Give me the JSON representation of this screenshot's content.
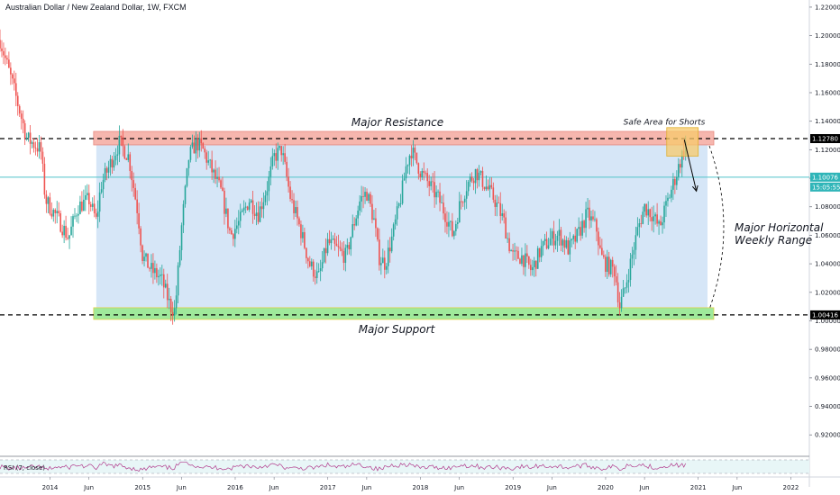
{
  "header": {
    "title": "Australian Dollar / New Zealand Dollar, 1W, FXCM"
  },
  "annotations": {
    "resistance": "Major Resistance",
    "support": "Major Support",
    "safe_area": "Safe Area for Shorts",
    "range_line1": "Major Horizontal",
    "range_line2": "Weekly Range"
  },
  "price_tags": {
    "resistance": "1.12780",
    "current": "1.10076",
    "countdown": "15:05:55",
    "support": "1.00416"
  },
  "rsi": {
    "label": "RSI (7, close)"
  },
  "colors": {
    "up": "#26a69a",
    "down": "#ef5350",
    "range_fill": "#d6e6f7",
    "resistance_fill": "#f4a9a0",
    "support_fill": "#8ee58a",
    "safe_fill": "#f7c96b",
    "current_line": "#4fc3c9",
    "rsi_line": "#b13a8c"
  },
  "chart_data": {
    "type": "candlestick",
    "y_ticks": [
      "1.22000",
      "1.20000",
      "1.18000",
      "1.16000",
      "1.14000",
      "1.12000",
      "1.10000",
      "1.08000",
      "1.06000",
      "1.04000",
      "1.02000",
      "1.00000",
      "0.98000",
      "0.96000",
      "0.94000",
      "0.92000"
    ],
    "ylim": [
      0.905,
      1.225
    ],
    "x_ticks": [
      "2014",
      "Jun",
      "2015",
      "Jun",
      "2016",
      "Jun",
      "2017",
      "Jun",
      "2018",
      "Jun",
      "2019",
      "Jun",
      "2020",
      "Jun",
      "2021",
      "Jun",
      "2022"
    ],
    "x_tick_dates": [
      2014.0,
      2014.42,
      2015.0,
      2015.42,
      2016.0,
      2016.42,
      2017.0,
      2017.42,
      2018.0,
      2018.42,
      2019.0,
      2019.42,
      2020.0,
      2020.42,
      2021.0,
      2021.42,
      2022.0
    ],
    "xlim": [
      2013.46,
      2022.2
    ],
    "resistance_level": 1.1278,
    "support_level": 1.00416,
    "current_price": 1.10076,
    "close_path": [
      [
        2013.46,
        1.197
      ],
      [
        2013.6,
        1.165
      ],
      [
        2013.75,
        1.128
      ],
      [
        2013.9,
        1.12
      ],
      [
        2013.95,
        1.085
      ],
      [
        2014.1,
        1.07
      ],
      [
        2014.2,
        1.058
      ],
      [
        2014.3,
        1.08
      ],
      [
        2014.42,
        1.085
      ],
      [
        2014.5,
        1.07
      ],
      [
        2014.55,
        1.095
      ],
      [
        2014.65,
        1.11
      ],
      [
        2014.75,
        1.125
      ],
      [
        2014.85,
        1.115
      ],
      [
        2014.95,
        1.075
      ],
      [
        2015.0,
        1.045
      ],
      [
        2015.1,
        1.035
      ],
      [
        2015.2,
        1.03
      ],
      [
        2015.3,
        1.01
      ],
      [
        2015.35,
        1.007
      ],
      [
        2015.42,
        1.065
      ],
      [
        2015.5,
        1.115
      ],
      [
        2015.58,
        1.125
      ],
      [
        2015.65,
        1.12
      ],
      [
        2015.75,
        1.105
      ],
      [
        2015.85,
        1.09
      ],
      [
        2015.95,
        1.06
      ],
      [
        2016.05,
        1.07
      ],
      [
        2016.15,
        1.085
      ],
      [
        2016.25,
        1.075
      ],
      [
        2016.35,
        1.095
      ],
      [
        2016.42,
        1.115
      ],
      [
        2016.5,
        1.12
      ],
      [
        2016.6,
        1.085
      ],
      [
        2016.7,
        1.065
      ],
      [
        2016.8,
        1.04
      ],
      [
        2016.9,
        1.03
      ],
      [
        2017.0,
        1.055
      ],
      [
        2017.1,
        1.05
      ],
      [
        2017.2,
        1.045
      ],
      [
        2017.25,
        1.06
      ],
      [
        2017.35,
        1.085
      ],
      [
        2017.42,
        1.09
      ],
      [
        2017.5,
        1.07
      ],
      [
        2017.55,
        1.045
      ],
      [
        2017.62,
        1.04
      ],
      [
        2017.7,
        1.06
      ],
      [
        2017.8,
        1.09
      ],
      [
        2017.85,
        1.11
      ],
      [
        2017.9,
        1.12
      ],
      [
        2018.0,
        1.105
      ],
      [
        2018.1,
        1.095
      ],
      [
        2018.2,
        1.085
      ],
      [
        2018.3,
        1.07
      ],
      [
        2018.35,
        1.06
      ],
      [
        2018.42,
        1.08
      ],
      [
        2018.5,
        1.095
      ],
      [
        2018.6,
        1.105
      ],
      [
        2018.7,
        1.095
      ],
      [
        2018.8,
        1.085
      ],
      [
        2018.9,
        1.07
      ],
      [
        2018.95,
        1.055
      ],
      [
        2019.0,
        1.045
      ],
      [
        2019.1,
        1.045
      ],
      [
        2019.2,
        1.035
      ],
      [
        2019.3,
        1.05
      ],
      [
        2019.42,
        1.058
      ],
      [
        2019.5,
        1.06
      ],
      [
        2019.6,
        1.05
      ],
      [
        2019.7,
        1.06
      ],
      [
        2019.8,
        1.075
      ],
      [
        2019.9,
        1.065
      ],
      [
        2019.95,
        1.045
      ],
      [
        2020.0,
        1.04
      ],
      [
        2020.1,
        1.035
      ],
      [
        2020.15,
        1.01
      ],
      [
        2020.2,
        1.02
      ],
      [
        2020.25,
        1.035
      ],
      [
        2020.35,
        1.065
      ],
      [
        2020.42,
        1.08
      ],
      [
        2020.5,
        1.075
      ],
      [
        2020.58,
        1.065
      ],
      [
        2020.65,
        1.08
      ],
      [
        2020.75,
        1.1
      ],
      [
        2020.82,
        1.115
      ],
      [
        2020.88,
        1.128
      ]
    ],
    "forecast_path": [
      [
        2020.85,
        1.127
      ],
      [
        2020.98,
        1.091
      ]
    ],
    "range_box": {
      "x0": 2014.5,
      "x1": 2021.1
    },
    "safe_area": {
      "x0": 2020.66,
      "x1": 2021.0,
      "y0": 1.1155,
      "y1": 1.1355
    },
    "rsi_ylim": [
      0,
      100
    ],
    "rsi_levels": [
      70,
      30
    ]
  }
}
